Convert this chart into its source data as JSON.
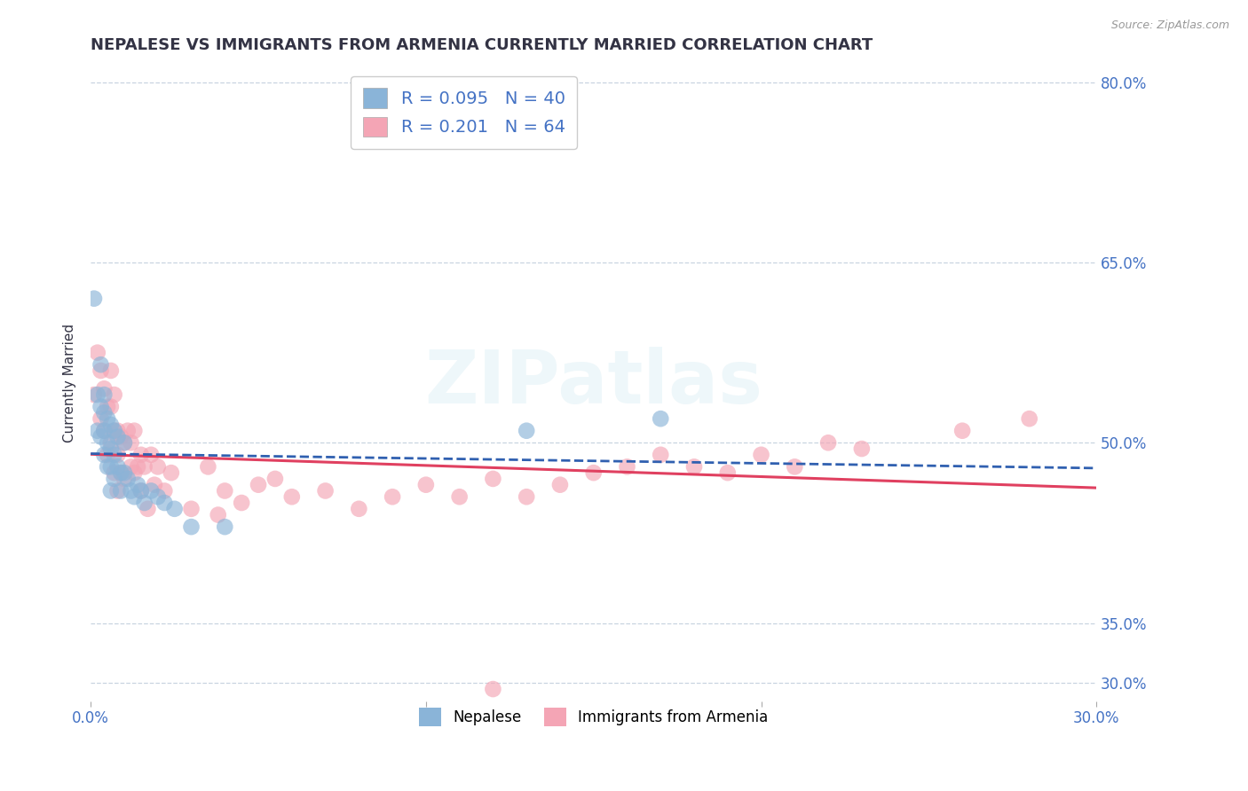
{
  "title": "NEPALESE VS IMMIGRANTS FROM ARMENIA CURRENTLY MARRIED CORRELATION CHART",
  "source_text": "Source: ZipAtlas.com",
  "ylabel": "Currently Married",
  "xlim": [
    0.0,
    0.3
  ],
  "ylim": [
    0.285,
    0.815
  ],
  "ytick_positions": [
    0.3,
    0.35,
    0.5,
    0.65,
    0.8
  ],
  "ytick_labels_right": [
    "30.0%",
    "35.0%",
    "50.0%",
    "65.0%",
    "80.0%"
  ],
  "xtick_positions": [
    0.0,
    0.1,
    0.2,
    0.3
  ],
  "xtick_labels": [
    "0.0%",
    "",
    "",
    "30.0%"
  ],
  "nepalese_color": "#8ab4d8",
  "nepalese_trend_color": "#3060b0",
  "armenia_color": "#f4a5b5",
  "armenia_trend_color": "#e04060",
  "nepalese_R": "0.095",
  "nepalese_N": "40",
  "armenia_R": "0.201",
  "armenia_N": "64",
  "watermark": "ZIPatlas",
  "grid_color": "#c8d4e0",
  "background_color": "#ffffff",
  "title_color": "#333344",
  "axis_color": "#4472c4",
  "title_fontsize": 13,
  "legend_upper_fontsize": 14,
  "legend_lower_fontsize": 12,
  "tick_fontsize": 12,
  "nepalese_x": [
    0.001,
    0.002,
    0.002,
    0.003,
    0.003,
    0.003,
    0.004,
    0.004,
    0.004,
    0.004,
    0.005,
    0.005,
    0.005,
    0.006,
    0.006,
    0.006,
    0.006,
    0.007,
    0.007,
    0.007,
    0.008,
    0.008,
    0.009,
    0.009,
    0.01,
    0.01,
    0.011,
    0.012,
    0.013,
    0.014,
    0.015,
    0.016,
    0.018,
    0.02,
    0.022,
    0.025,
    0.03,
    0.04,
    0.13,
    0.17
  ],
  "nepalese_y": [
    0.62,
    0.54,
    0.51,
    0.565,
    0.53,
    0.505,
    0.54,
    0.525,
    0.51,
    0.49,
    0.52,
    0.5,
    0.48,
    0.515,
    0.495,
    0.48,
    0.46,
    0.51,
    0.49,
    0.47,
    0.505,
    0.48,
    0.475,
    0.46,
    0.5,
    0.475,
    0.47,
    0.46,
    0.455,
    0.465,
    0.46,
    0.45,
    0.46,
    0.455,
    0.45,
    0.445,
    0.43,
    0.43,
    0.51,
    0.52
  ],
  "armenia_x": [
    0.001,
    0.002,
    0.003,
    0.003,
    0.004,
    0.004,
    0.005,
    0.005,
    0.006,
    0.006,
    0.006,
    0.007,
    0.007,
    0.007,
    0.008,
    0.008,
    0.008,
    0.009,
    0.009,
    0.01,
    0.01,
    0.011,
    0.012,
    0.012,
    0.013,
    0.013,
    0.014,
    0.015,
    0.015,
    0.016,
    0.017,
    0.018,
    0.019,
    0.02,
    0.022,
    0.024,
    0.03,
    0.035,
    0.038,
    0.04,
    0.045,
    0.05,
    0.055,
    0.06,
    0.07,
    0.08,
    0.09,
    0.1,
    0.11,
    0.12,
    0.13,
    0.14,
    0.15,
    0.16,
    0.17,
    0.18,
    0.19,
    0.2,
    0.21,
    0.22,
    0.23,
    0.26,
    0.28,
    0.12
  ],
  "armenia_y": [
    0.54,
    0.575,
    0.56,
    0.52,
    0.545,
    0.51,
    0.53,
    0.49,
    0.56,
    0.53,
    0.5,
    0.54,
    0.51,
    0.475,
    0.51,
    0.49,
    0.46,
    0.505,
    0.475,
    0.5,
    0.47,
    0.51,
    0.48,
    0.5,
    0.475,
    0.51,
    0.48,
    0.49,
    0.46,
    0.48,
    0.445,
    0.49,
    0.465,
    0.48,
    0.46,
    0.475,
    0.445,
    0.48,
    0.44,
    0.46,
    0.45,
    0.465,
    0.47,
    0.455,
    0.46,
    0.445,
    0.455,
    0.465,
    0.455,
    0.47,
    0.455,
    0.465,
    0.475,
    0.48,
    0.49,
    0.48,
    0.475,
    0.49,
    0.48,
    0.5,
    0.495,
    0.51,
    0.52,
    0.295
  ]
}
